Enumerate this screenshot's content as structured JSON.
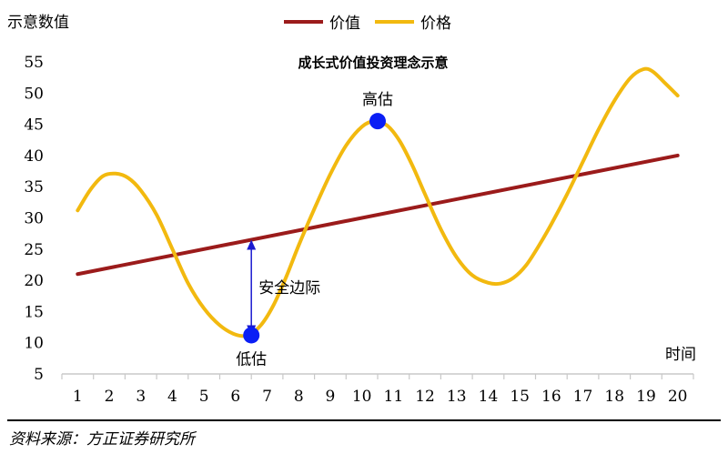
{
  "chart_data": {
    "type": "line",
    "title": "成长式价值投资理念示意",
    "ylabel": "示意数值",
    "xlabel": "时间",
    "x": [
      1,
      2,
      3,
      4,
      5,
      6,
      7,
      8,
      9,
      10,
      11,
      12,
      13,
      14,
      15,
      16,
      17,
      18,
      19,
      20
    ],
    "ylim": [
      5,
      55
    ],
    "yticks": [
      5,
      10,
      15,
      20,
      25,
      30,
      35,
      40,
      45,
      50,
      55
    ],
    "xlim": [
      0.5,
      20.5
    ],
    "grid": false,
    "legend": "top-center",
    "series": [
      {
        "name": "价值",
        "color": "#9b1b1b",
        "points": [
          [
            1,
            21
          ],
          [
            20,
            40
          ]
        ]
      },
      {
        "name": "价格",
        "color": "#f2b90f",
        "points": [
          [
            1,
            31.2
          ],
          [
            1.4,
            34.5
          ],
          [
            1.8,
            36.7
          ],
          [
            2.2,
            37.1
          ],
          [
            2.6,
            36.4
          ],
          [
            3.0,
            34.4
          ],
          [
            3.5,
            30.5
          ],
          [
            4.0,
            25.0
          ],
          [
            4.5,
            19.5
          ],
          [
            5.0,
            15.5
          ],
          [
            5.5,
            12.8
          ],
          [
            6.0,
            11.3
          ],
          [
            6.4,
            11.2
          ],
          [
            6.8,
            12.8
          ],
          [
            7.2,
            16.0
          ],
          [
            7.6,
            20.5
          ],
          [
            8.0,
            25.6
          ],
          [
            8.5,
            31.5
          ],
          [
            9.0,
            37.0
          ],
          [
            9.5,
            41.6
          ],
          [
            10.0,
            44.6
          ],
          [
            10.4,
            45.5
          ],
          [
            10.8,
            44.8
          ],
          [
            11.2,
            42.3
          ],
          [
            11.6,
            38.4
          ],
          [
            12.0,
            33.8
          ],
          [
            12.5,
            28.2
          ],
          [
            13.0,
            23.7
          ],
          [
            13.5,
            20.8
          ],
          [
            14.0,
            19.6
          ],
          [
            14.4,
            19.5
          ],
          [
            14.8,
            20.4
          ],
          [
            15.2,
            22.4
          ],
          [
            15.6,
            25.5
          ],
          [
            16.0,
            29.0
          ],
          [
            16.5,
            33.8
          ],
          [
            17.0,
            39.0
          ],
          [
            17.5,
            44.2
          ],
          [
            18.0,
            48.8
          ],
          [
            18.5,
            52.4
          ],
          [
            18.9,
            53.8
          ],
          [
            19.2,
            53.5
          ],
          [
            19.6,
            51.6
          ],
          [
            20.0,
            49.6
          ]
        ]
      }
    ],
    "annotations": [
      {
        "text": "高估",
        "x": 10.5,
        "y": 45.5
      },
      {
        "text": "低估",
        "x": 6.5,
        "y": 11.2
      },
      {
        "text": "安全边际",
        "x": 6.5,
        "y_from": 11.2,
        "y_to": 26.5
      }
    ]
  },
  "source": "资料来源：方正证券研究所"
}
